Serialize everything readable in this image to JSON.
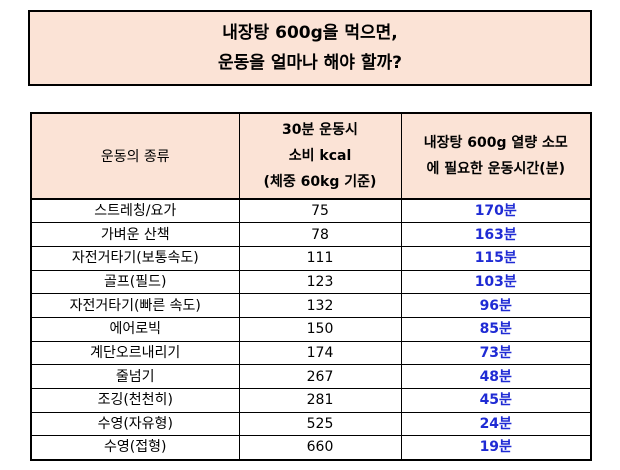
{
  "title": {
    "line1": "내장탕 600g을 먹으면,",
    "line2": "운동을 얼마나 해야 할까?"
  },
  "header": {
    "exercise": "운동의 종류",
    "kcal_line1": "30분 운동시",
    "kcal_line2": "소비 kcal",
    "kcal_line3": "(체중 60kg 기준)",
    "time_line1": "내장탕 600g 열량 소모",
    "time_line2": "에 필요한 운동시간(분)"
  },
  "rows": [
    {
      "exercise": "스트레칭/요가",
      "kcal": "75",
      "time": "170분"
    },
    {
      "exercise": "가벼운 산책",
      "kcal": "78",
      "time": "163분"
    },
    {
      "exercise": "자전거타기(보통속도)",
      "kcal": "111",
      "time": "115분"
    },
    {
      "exercise": "골프(필드)",
      "kcal": "123",
      "time": "103분"
    },
    {
      "exercise": "자전거타기(빠른 속도)",
      "kcal": "132",
      "time": "96분"
    },
    {
      "exercise": "에어로빅",
      "kcal": "150",
      "time": "85분"
    },
    {
      "exercise": "계단오르내리기",
      "kcal": "174",
      "time": "73분"
    },
    {
      "exercise": "줄넘기",
      "kcal": "267",
      "time": "48분"
    },
    {
      "exercise": "조깅(천천히)",
      "kcal": "281",
      "time": "45분"
    },
    {
      "exercise": "수영(자유형)",
      "kcal": "525",
      "time": "24분"
    },
    {
      "exercise": "수영(접형)",
      "kcal": "660",
      "time": "19분"
    }
  ],
  "colors": {
    "header_fill": "#fbe3d6",
    "time_text": "#1f2bd4"
  }
}
